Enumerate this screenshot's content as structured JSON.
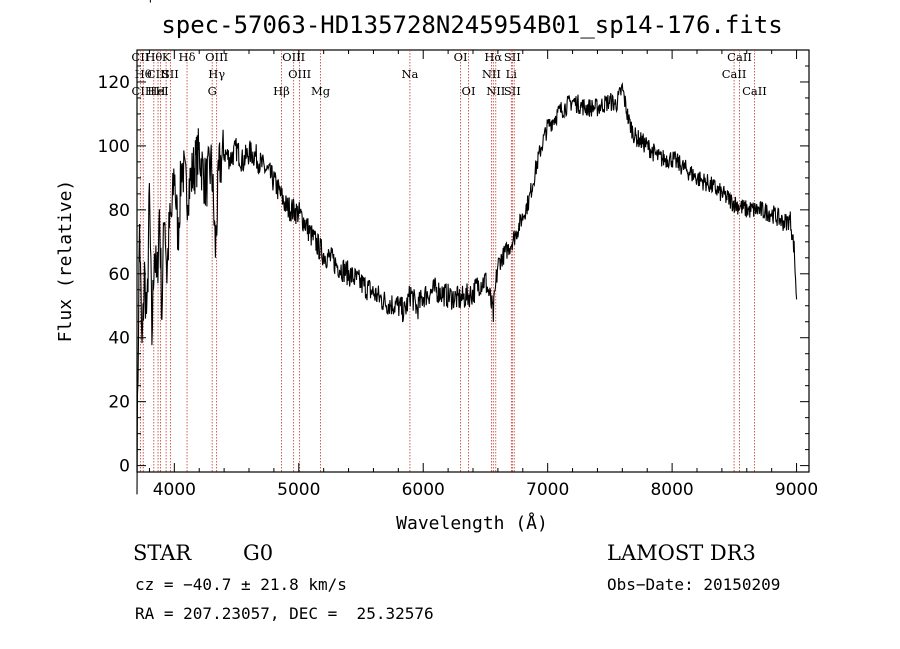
{
  "chart_data": {
    "type": "line",
    "title": "spec-57063-HD135728N245954B01_sp14-176.fits",
    "xlabel": "Wavelength (Å)",
    "ylabel": "Flux (relative)",
    "xlim": [
      3700,
      9100
    ],
    "ylim": [
      -2,
      130
    ],
    "xticks": [
      4000,
      5000,
      6000,
      7000,
      8000,
      9000
    ],
    "yticks": [
      0,
      20,
      40,
      60,
      80,
      100,
      120
    ],
    "series": [
      {
        "name": "flux",
        "x": [
          3700,
          3720,
          3740,
          3760,
          3780,
          3800,
          3820,
          3840,
          3860,
          3880,
          3900,
          3920,
          3940,
          3960,
          3980,
          4000,
          4030,
          4060,
          4100,
          4150,
          4200,
          4250,
          4300,
          4330,
          4360,
          4400,
          4450,
          4500,
          4550,
          4600,
          4650,
          4700,
          4750,
          4800,
          4850,
          4900,
          4950,
          5000,
          5050,
          5100,
          5150,
          5200,
          5250,
          5300,
          5400,
          5500,
          5600,
          5700,
          5800,
          5850,
          5900,
          5950,
          6000,
          6100,
          6200,
          6300,
          6400,
          6450,
          6500,
          6540,
          6563,
          6580,
          6600,
          6650,
          6700,
          6750,
          6800,
          6850,
          6900,
          6950,
          7000,
          7100,
          7200,
          7300,
          7400,
          7500,
          7550,
          7600,
          7650,
          7700,
          7800,
          7900,
          8000,
          8100,
          8200,
          8300,
          8400,
          8500,
          8600,
          8700,
          8800,
          8900,
          8950,
          8980,
          9000
        ],
        "values": [
          0,
          75,
          35,
          60,
          45,
          85,
          40,
          70,
          55,
          80,
          48,
          82,
          60,
          75,
          78,
          92,
          72,
          95,
          85,
          92,
          98,
          88,
          94,
          68,
          93,
          98,
          96,
          99,
          95,
          98,
          97,
          94,
          92,
          89,
          85,
          81,
          80,
          79,
          76,
          72,
          69,
          66,
          65,
          63,
          60,
          57,
          54,
          51,
          50,
          48,
          54,
          49,
          53,
          55,
          53,
          52,
          54,
          57,
          58,
          52,
          47,
          55,
          63,
          66,
          69,
          73,
          78,
          83,
          92,
          100,
          106,
          111,
          114,
          112,
          112,
          114,
          113,
          118,
          108,
          103,
          100,
          96,
          96,
          93,
          90,
          88,
          85,
          82,
          80,
          80,
          79,
          76,
          77,
          68,
          52
        ]
      }
    ],
    "lines": [
      {
        "name": "C1",
        "wl": 3727,
        "labels": [
          "CII"
        ]
      },
      {
        "name": "C2",
        "wl": 3750,
        "labels": [
          "",
          "Hθ",
          "CIH",
          "Hη"
        ]
      },
      {
        "name": "C3",
        "wl": 3835,
        "labels": [
          "Hθ"
        ]
      },
      {
        "name": "C4",
        "wl": 3869,
        "labels": [
          "",
          "CIII",
          "HeI"
        ]
      },
      {
        "name": "C5",
        "wl": 3889,
        "labels": [
          "",
          "",
          "H"
        ]
      },
      {
        "name": "C6",
        "wl": 3934,
        "labels": [
          "K"
        ]
      },
      {
        "name": "C7",
        "wl": 3968,
        "labels": [
          "",
          "SII"
        ]
      },
      {
        "name": "C8",
        "wl": 4102,
        "labels": [
          "Hδ"
        ]
      },
      {
        "name": "C9",
        "wl": 4304,
        "labels": [
          "",
          "",
          "G"
        ]
      },
      {
        "name": "C10",
        "wl": 4340,
        "labels": [
          "OIII",
          "Hγ"
        ]
      },
      {
        "name": "C11",
        "wl": 4861,
        "labels": [
          "",
          "",
          "Hβ"
        ]
      },
      {
        "name": "C12",
        "wl": 4959,
        "labels": [
          "OIII"
        ]
      },
      {
        "name": "C13",
        "wl": 5007,
        "labels": [
          "",
          "OIII"
        ]
      },
      {
        "name": "C14",
        "wl": 5175,
        "labels": [
          "",
          "",
          "Mg"
        ]
      },
      {
        "name": "C15",
        "wl": 5893,
        "labels": [
          "",
          "Na"
        ]
      },
      {
        "name": "C16",
        "wl": 6300,
        "labels": [
          "OI"
        ]
      },
      {
        "name": "C17",
        "wl": 6364,
        "labels": [
          "",
          "",
          "OI"
        ]
      },
      {
        "name": "C18",
        "wl": 6548,
        "labels": [
          "",
          "NII"
        ]
      },
      {
        "name": "C19",
        "wl": 6563,
        "labels": [
          "Hα"
        ]
      },
      {
        "name": "C20",
        "wl": 6583,
        "labels": [
          "",
          "",
          "NII"
        ]
      },
      {
        "name": "C21",
        "wl": 6708,
        "labels": [
          "",
          "Li"
        ]
      },
      {
        "name": "C22",
        "wl": 6716,
        "labels": [
          "SII",
          "",
          "SII"
        ]
      },
      {
        "name": "C23",
        "wl": 6731,
        "labels": []
      },
      {
        "name": "C24",
        "wl": 8498,
        "labels": [
          "",
          "CaII"
        ]
      },
      {
        "name": "C25",
        "wl": 8542,
        "labels": [
          "CaII"
        ]
      },
      {
        "name": "C26",
        "wl": 8662,
        "labels": [
          "",
          "",
          "CaII"
        ]
      }
    ]
  },
  "info": {
    "object_class": "STAR",
    "subclass": "G0",
    "survey": "LAMOST DR3",
    "cz": "cz = −40.7 ± 21.8 km/s",
    "obs_date": "Obs−Date: 20150209",
    "coords": "RA = 207.23057, DEC =  25.32576"
  },
  "colors": {
    "line_marker": "#c0392b",
    "spectrum": "#000000"
  }
}
